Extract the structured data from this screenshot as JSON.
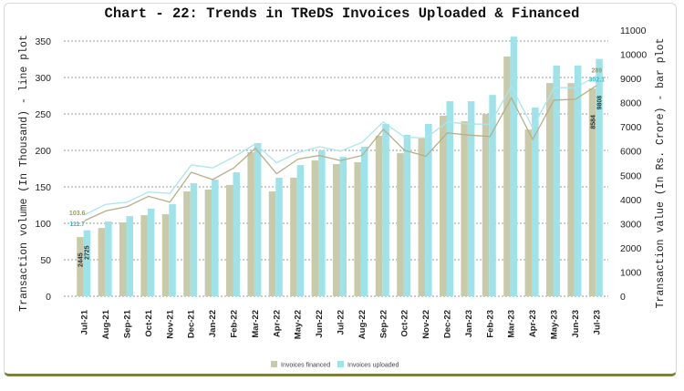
{
  "chart_data": {
    "type": "bar+line",
    "title": "Chart - 22: Trends in TReDS Invoices Uploaded & Financed",
    "ylabel_left": "Transaction volume (In Thousand) - line plot",
    "ylabel_right": "Transaction value (In Rs. Crore) - bar plot",
    "ylim_left": [
      0,
      350
    ],
    "yticks_left": [
      0,
      50,
      100,
      150,
      200,
      250,
      300,
      350
    ],
    "ylim_right": [
      0,
      11000
    ],
    "yticks_right": [
      0,
      1000,
      2000,
      3000,
      4000,
      5000,
      6000,
      7000,
      8000,
      9000,
      10000,
      11000
    ],
    "grid": "horizontal dashed (left axis)",
    "legend_position": "bottom",
    "categories": [
      "Jul-21",
      "Aug-21",
      "Sep-21",
      "Oct-21",
      "Nov-21",
      "Dec-21",
      "Jan-22",
      "Feb-22",
      "Mar-22",
      "Apr-22",
      "May-22",
      "Jun-22",
      "Jul-22",
      "Aug-22",
      "Sep-22",
      "Oct-22",
      "Nov-22",
      "Dec-22",
      "Jan-23",
      "Feb-23",
      "Mar-23",
      "Apr-23",
      "May-23",
      "Jun-23",
      "Jul-23"
    ],
    "bars": [
      {
        "name": "Invoices financed",
        "color": "#c9caa9",
        "values": [
          2445,
          2820,
          3050,
          3350,
          3390,
          4330,
          4410,
          4600,
          5950,
          4330,
          4900,
          5610,
          5460,
          5540,
          6630,
          5910,
          6520,
          7460,
          7230,
          7530,
          9910,
          6890,
          8810,
          8810,
          8584
        ]
      },
      {
        "name": "Invoices uploaded",
        "color": "#9fe3ea",
        "values": [
          2725,
          3090,
          3310,
          3620,
          3800,
          4670,
          4820,
          5120,
          6330,
          4900,
          5420,
          6030,
          5760,
          6180,
          7120,
          6670,
          7120,
          8060,
          8060,
          8320,
          10730,
          7800,
          9530,
          9530,
          9808
        ]
      }
    ],
    "lines": [
      {
        "name": "Invoices financed",
        "color": "#b5b08a",
        "values": [
          103.6,
          117,
          123,
          137,
          129,
          170,
          160,
          176,
          203,
          168,
          188,
          193,
          186,
          193,
          229,
          200,
          192,
          224,
          221,
          219,
          272,
          215,
          269,
          270,
          289
        ]
      },
      {
        "name": "Invoices uploaded",
        "color": "#a9e6ec",
        "values": [
          111.7,
          126,
          129,
          143,
          141,
          180,
          176,
          191,
          209,
          183,
          197,
          205,
          199,
          211,
          239,
          218,
          217,
          239,
          236,
          236,
          288,
          231,
          286,
          286,
          302.1
        ]
      }
    ],
    "data_labels": {
      "bar_first": [
        "2445",
        "2725"
      ],
      "bar_last": [
        "8584",
        "9808"
      ],
      "line_first": [
        "103.6",
        "111.7"
      ],
      "line_last": [
        "289",
        "302.1"
      ]
    }
  }
}
